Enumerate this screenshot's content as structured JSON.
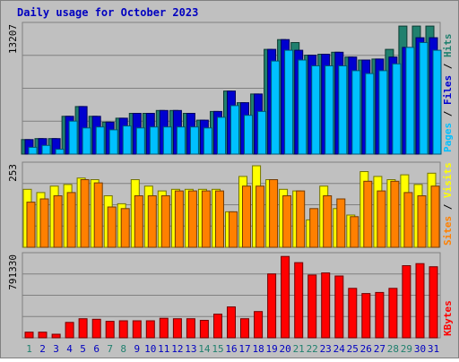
{
  "chart_data": {
    "type": "bar",
    "title": "Daily usage for October 2023",
    "categories": [
      "1",
      "2",
      "3",
      "4",
      "5",
      "6",
      "7",
      "8",
      "9",
      "10",
      "11",
      "12",
      "13",
      "14",
      "15",
      "16",
      "17",
      "18",
      "19",
      "20",
      "21",
      "22",
      "23",
      "24",
      "25",
      "26",
      "27",
      "28",
      "29",
      "30",
      "31"
    ],
    "weekend_days": [
      1,
      7,
      8,
      14,
      15,
      21,
      22,
      28,
      29
    ],
    "panels": [
      {
        "id": "pages_files_hits",
        "ymax": 13207,
        "ymax_label": "13207",
        "axis_label_parts": [
          "Pages",
          " / ",
          "Files",
          " / ",
          "Hits"
        ],
        "axis_label_colors": [
          "#00c0ff",
          "#000000",
          "#0000d0",
          "#000000",
          "#20806e"
        ],
        "series": [
          {
            "name": "Hits",
            "color": "#20806e",
            "values": [
              1500,
              1600,
              1600,
              3900,
              4900,
              3900,
              3300,
              3700,
              4200,
              4200,
              4500,
              4500,
              4200,
              3500,
              4400,
              6500,
              5300,
              6200,
              10800,
              11800,
              11500,
              10200,
              10300,
              10500,
              10000,
              9700,
              9800,
              10800,
              13200,
              13200,
              13200
            ]
          },
          {
            "name": "Files",
            "color": "#0000d0",
            "values": [
              1500,
              1600,
              1600,
              3900,
              4900,
              3900,
              3300,
              3700,
              4200,
              4200,
              4500,
              4500,
              4200,
              3500,
              4400,
              6500,
              5300,
              6200,
              10800,
              11800,
              10700,
              10200,
              10300,
              10500,
              10000,
              9700,
              9800,
              10000,
              11000,
              12000,
              12000
            ]
          },
          {
            "name": "Pages",
            "color": "#00c0ff",
            "values": [
              700,
              900,
              500,
              3400,
              2700,
              2800,
              2500,
              2900,
              2700,
              2800,
              2800,
              2800,
              2800,
              2700,
              3800,
              5000,
              4000,
              4400,
              9600,
              10700,
              9700,
              9100,
              9100,
              9100,
              8600,
              8300,
              8600,
              9300,
              11000,
              11500,
              10700
            ]
          }
        ]
      },
      {
        "id": "sites_visits",
        "ymax": 253,
        "ymax_label": "253",
        "axis_label_parts": [
          "Sites",
          " / ",
          "Visits"
        ],
        "axis_label_colors": [
          "#ff8000",
          "#000000",
          "#ffff00"
        ],
        "series": [
          {
            "name": "Visits",
            "color": "#ffff00",
            "values": [
              180,
              170,
              190,
              195,
              215,
              210,
              160,
              135,
              210,
              190,
              175,
              180,
              180,
              180,
              180,
              110,
              220,
              253,
              210,
              180,
              175,
              85,
              190,
              120,
              100,
              235,
              220,
              210,
              225,
              195,
              230
            ]
          },
          {
            "name": "Sites",
            "color": "#ff8000",
            "values": [
              140,
              150,
              160,
              170,
              210,
              200,
              125,
              120,
              160,
              160,
              160,
              175,
              175,
              175,
              175,
              110,
              190,
              190,
              210,
              160,
              175,
              120,
              160,
              150,
              95,
              205,
              175,
              205,
              170,
              160,
              190
            ]
          }
        ]
      },
      {
        "id": "kbytes",
        "ymax": 791330,
        "ymax_label": "791330",
        "axis_label_parts": [
          "KBytes"
        ],
        "axis_label_colors": [
          "#ff0000"
        ],
        "series": [
          {
            "name": "KBytes",
            "color": "#ff0000",
            "values": [
              55000,
              55000,
              35000,
              150000,
              185000,
              180000,
              160000,
              165000,
              165000,
              165000,
              190000,
              185000,
              185000,
              170000,
              230000,
              300000,
              185000,
              255000,
              620000,
              790000,
              730000,
              610000,
              630000,
              600000,
              480000,
              430000,
              440000,
              480000,
              700000,
              720000,
              690000
            ]
          }
        ]
      }
    ]
  }
}
